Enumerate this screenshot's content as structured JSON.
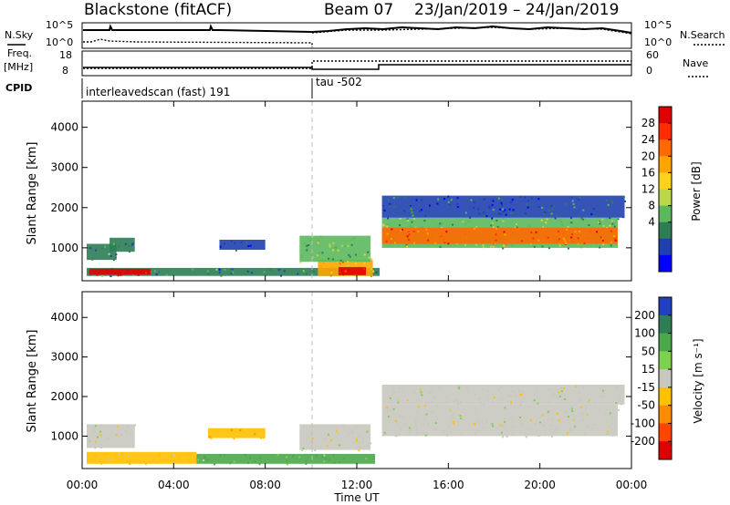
{
  "header": {
    "station": "Blackstone (fitACF)",
    "beam": "Beam 07",
    "date_range": "23/Jan/2019 – 24/Jan/2019"
  },
  "top_panels": {
    "nsky_label": "N.Sky",
    "nsky_ticks": [
      "10^5",
      "10^0"
    ],
    "nsearch_label": "N.Search",
    "nsearch_ticks": [
      "10^5",
      "10^0"
    ],
    "freq_label": "Freq.",
    "freq_unit": "[MHz]",
    "freq_ticks": [
      "18",
      "8"
    ],
    "nave_label": "Nave",
    "nave_ticks": [
      "60",
      "0"
    ],
    "cpid_label": "CPID",
    "cpid_1": "interleavedscan (fast) 191",
    "cpid_2": "tau -502"
  },
  "colorbars": {
    "power": {
      "label": "Power [dB]",
      "ticks": [
        "28",
        "24",
        "20",
        "16",
        "12",
        "8",
        "4"
      ],
      "colors": [
        "#0000ff",
        "#2040b0",
        "#2e7d55",
        "#5cb85c",
        "#b8d84a",
        "#ffd21a",
        "#ffa500",
        "#ff6a00",
        "#ff2a00",
        "#e00000"
      ]
    },
    "velocity": {
      "label": "Velocity [m s⁻¹]",
      "ticks": [
        "200",
        "100",
        "50",
        "15",
        "-15",
        "-50",
        "-100",
        "-200"
      ],
      "colors": [
        "#2040c0",
        "#2e7d55",
        "#4aa84a",
        "#7ed04f",
        "#c8c8c0",
        "#ffc000",
        "#ff8c00",
        "#ff4500",
        "#e00000"
      ]
    }
  },
  "chart_data": [
    {
      "type": "heatmap",
      "title": "Power",
      "xlabel": "",
      "ylabel": "Slant Range [km]",
      "x_ticks": [
        "00:00",
        "04:00",
        "08:00",
        "12:00",
        "16:00",
        "20:00",
        "00:00"
      ],
      "y_ticks": [
        1000,
        2000,
        3000,
        4000
      ],
      "xlim": [
        0,
        24
      ],
      "ylim": [
        180,
        4650
      ],
      "colorbar": "Power [dB]",
      "regions": [
        {
          "t0": 0.2,
          "t1": 13.0,
          "r0": 300,
          "r1": 500,
          "value": 8
        },
        {
          "t0": 0.3,
          "t1": 3.0,
          "r0": 330,
          "r1": 480,
          "value": 28
        },
        {
          "t0": 10.3,
          "t1": 12.7,
          "r0": 300,
          "r1": 700,
          "value": 20
        },
        {
          "t0": 11.2,
          "t1": 12.4,
          "r0": 320,
          "r1": 520,
          "value": 28
        },
        {
          "t0": 0.2,
          "t1": 1.5,
          "r0": 700,
          "r1": 1100,
          "value": 8
        },
        {
          "t0": 1.2,
          "t1": 2.3,
          "r0": 900,
          "r1": 1250,
          "value": 8
        },
        {
          "t0": 6.0,
          "t1": 8.0,
          "r0": 950,
          "r1": 1200,
          "value": 6
        },
        {
          "t0": 9.5,
          "t1": 12.6,
          "r0": 650,
          "r1": 1300,
          "value": 12
        },
        {
          "t0": 13.1,
          "t1": 23.4,
          "r0": 1000,
          "r1": 1750,
          "value": 12
        },
        {
          "t0": 13.1,
          "t1": 23.4,
          "r0": 1100,
          "r1": 1500,
          "value": 24
        },
        {
          "t0": 13.1,
          "t1": 23.7,
          "r0": 1750,
          "r1": 2300,
          "value": 6
        }
      ]
    },
    {
      "type": "heatmap",
      "title": "Velocity",
      "xlabel": "Time UT",
      "ylabel": "Slant Range [km]",
      "x_ticks": [
        "00:00",
        "04:00",
        "08:00",
        "12:00",
        "16:00",
        "20:00",
        "00:00"
      ],
      "y_ticks": [
        1000,
        2000,
        3000,
        4000
      ],
      "xlim": [
        0,
        24
      ],
      "ylim": [
        180,
        4650
      ],
      "colorbar": "Velocity [m s⁻¹]",
      "regions": [
        {
          "t0": 0.2,
          "t1": 5.0,
          "r0": 300,
          "r1": 600,
          "value": -30
        },
        {
          "t0": 5.0,
          "t1": 12.8,
          "r0": 300,
          "r1": 550,
          "value": 30
        },
        {
          "t0": 0.2,
          "t1": 2.3,
          "r0": 700,
          "r1": 1300,
          "value": 0
        },
        {
          "t0": 9.5,
          "t1": 12.6,
          "r0": 650,
          "r1": 1300,
          "value": 0
        },
        {
          "t0": 5.5,
          "t1": 8.0,
          "r0": 950,
          "r1": 1200,
          "value": -40
        },
        {
          "t0": 13.1,
          "t1": 23.4,
          "r0": 1000,
          "r1": 1800,
          "value": 0
        },
        {
          "t0": 13.1,
          "t1": 23.7,
          "r0": 1800,
          "r1": 2300,
          "value": 0
        }
      ]
    }
  ]
}
